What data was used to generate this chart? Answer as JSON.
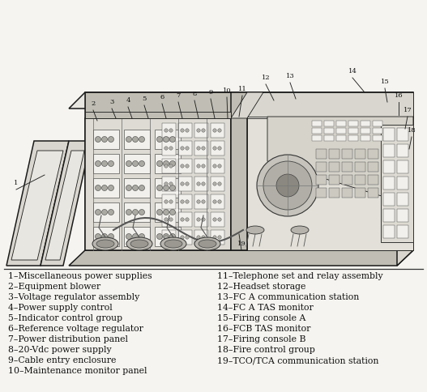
{
  "background_color": "#f5f4f0",
  "legend_left": [
    "1–Miscellaneous power supplies",
    "2–Equipment blower",
    "3–Voltage regulator assembly",
    "4–Power supply control",
    "5–Indicator control group",
    "6–Reference voltage regulator",
    "7–Power distribution panel",
    "8–20-Vdc power supply",
    "9–Cable entry enclosure",
    "10–Maintenance monitor panel"
  ],
  "legend_right": [
    "11–Telephone set and relay assembly",
    "12–Headset storage",
    "13–FC A communication station",
    "14–FC A TAS monitor",
    "15–Firing console A",
    "16–FCB TAS monitor",
    "17–Firing console B",
    "18–Fire control group",
    "19–TCO/TCA communication station"
  ],
  "font_size": 7.8,
  "text_color": "#111111",
  "ec": "#1a1a1a",
  "lw_main": 1.1,
  "lw_thin": 0.6,
  "fill_light": "#e8e6e0",
  "fill_mid": "#d8d6ce",
  "fill_dark": "#c0beb4",
  "fill_white": "#f2f0ec"
}
